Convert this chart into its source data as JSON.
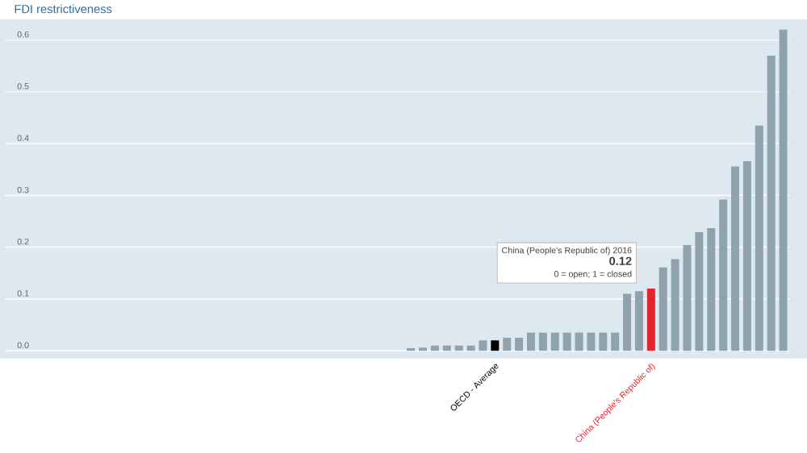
{
  "chart_data": {
    "type": "bar",
    "title": "FDI restrictiveness",
    "categories": [
      null,
      null,
      null,
      null,
      null,
      null,
      null,
      null,
      null,
      null,
      null,
      null,
      null,
      null,
      null,
      null,
      null,
      null,
      null,
      null,
      null,
      null,
      null,
      null,
      null,
      null,
      null,
      null,
      null,
      null,
      null,
      null,
      null,
      null,
      null,
      null,
      null,
      null,
      null,
      null,
      "OECD - Average",
      null,
      null,
      null,
      null,
      null,
      null,
      null,
      null,
      null,
      null,
      null,
      null,
      "China (People's Republic of)",
      null,
      null,
      null,
      null,
      null,
      null,
      null,
      null,
      null,
      null,
      null
    ],
    "values": [
      0,
      0,
      0,
      0,
      0,
      0,
      0,
      0,
      0,
      0,
      0,
      0,
      0,
      0,
      0,
      0,
      0,
      0,
      0,
      0,
      0,
      0,
      0,
      0,
      0,
      0,
      0,
      0,
      0,
      0,
      0,
      0,
      0,
      0.005,
      0.006,
      0.01,
      0.01,
      0.01,
      0.01,
      0.02,
      0.02,
      0.025,
      0.025,
      0.035,
      0.035,
      0.035,
      0.035,
      0.035,
      0.035,
      0.035,
      0.035,
      0.11,
      0.115,
      0.12,
      0.161,
      0.177,
      0.204,
      0.229,
      0.237,
      0.292,
      0.356,
      0.366,
      0.435,
      0.57,
      0.62
    ],
    "colors": [
      "#8fa3ae",
      "#8fa3ae",
      "#8fa3ae",
      "#8fa3ae",
      "#8fa3ae",
      "#8fa3ae",
      "#8fa3ae",
      "#8fa3ae",
      "#8fa3ae",
      "#8fa3ae",
      "#8fa3ae",
      "#8fa3ae",
      "#8fa3ae",
      "#8fa3ae",
      "#8fa3ae",
      "#8fa3ae",
      "#8fa3ae",
      "#8fa3ae",
      "#8fa3ae",
      "#8fa3ae",
      "#8fa3ae",
      "#8fa3ae",
      "#8fa3ae",
      "#8fa3ae",
      "#8fa3ae",
      "#8fa3ae",
      "#8fa3ae",
      "#8fa3ae",
      "#8fa3ae",
      "#8fa3ae",
      "#8fa3ae",
      "#8fa3ae",
      "#8fa3ae",
      "#8fa3ae",
      "#8fa3ae",
      "#8fa3ae",
      "#8fa3ae",
      "#8fa3ae",
      "#8fa3ae",
      "#8fa3ae",
      "#000000",
      "#8fa3ae",
      "#8fa3ae",
      "#8fa3ae",
      "#8fa3ae",
      "#8fa3ae",
      "#8fa3ae",
      "#8fa3ae",
      "#8fa3ae",
      "#8fa3ae",
      "#8fa3ae",
      "#8fa3ae",
      "#8fa3ae",
      "#e3242b",
      "#8fa3ae",
      "#8fa3ae",
      "#8fa3ae",
      "#8fa3ae",
      "#8fa3ae",
      "#8fa3ae",
      "#8fa3ae",
      "#8fa3ae",
      "#8fa3ae",
      "#8fa3ae",
      "#8fa3ae"
    ],
    "ylim": [
      -0.015,
      0.64
    ],
    "yticks": [
      {
        "value": 0,
        "label": "0.0"
      },
      {
        "value": 0.1,
        "label": "0.1"
      },
      {
        "value": 0.2,
        "label": "0.2"
      },
      {
        "value": 0.3,
        "label": "0.3"
      },
      {
        "value": 0.4,
        "label": "0.4"
      },
      {
        "value": 0.5,
        "label": "0.5"
      },
      {
        "value": 0.6,
        "label": "0.6"
      }
    ],
    "grid": "y",
    "annotations": [
      "China (People's Republic of) 2016",
      "0.12",
      "0 = open; 1 = closed"
    ]
  }
}
